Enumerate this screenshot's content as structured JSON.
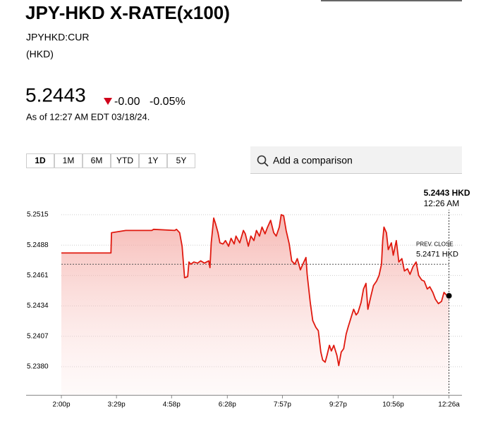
{
  "header": {
    "title": "JPY-HKD X-RATE(x100)",
    "ticker": "JPYHKD:CUR",
    "currency": "(HKD)",
    "price": "5.2443",
    "change": "-0.00",
    "change_pct": "-0.05%",
    "as_of": "As of 12:27 AM EDT 03/18/24."
  },
  "controls": {
    "ranges": [
      "1D",
      "1M",
      "6M",
      "YTD",
      "1Y",
      "5Y"
    ],
    "search_placeholder": "Add a comparison"
  },
  "chart_data": {
    "type": "line",
    "x": [
      0,
      80,
      81,
      104,
      146,
      149,
      183,
      186,
      191,
      195,
      199,
      204,
      206,
      209,
      214,
      220,
      225,
      231,
      238,
      240,
      242,
      246,
      249,
      253,
      256,
      261,
      265,
      270,
      274,
      279,
      282,
      288,
      294,
      297,
      302,
      306,
      311,
      315,
      320,
      324,
      329,
      333,
      338,
      343,
      347,
      352,
      355,
      359,
      363,
      368,
      372,
      377,
      381,
      386,
      390,
      395,
      397,
      402,
      406,
      411,
      415,
      419,
      422,
      426,
      429,
      433,
      436,
      440,
      445,
      448,
      452,
      456,
      460,
      463,
      468,
      472,
      476,
      479,
      484,
      488,
      492,
      495,
      500,
      504,
      509,
      513,
      517,
      519,
      521,
      525,
      528,
      533,
      536,
      541,
      545,
      550,
      554,
      559,
      563,
      568,
      573,
      577,
      582,
      586,
      591,
      595,
      600,
      604,
      609,
      614,
      618,
      623,
      626
    ],
    "series": [
      {
        "name": "JPYHKD:CUR",
        "color": "#e0190f",
        "values": [
          5.2481,
          5.2481,
          5.2499,
          5.2501,
          5.2501,
          5.2502,
          5.2501,
          5.2502,
          5.2499,
          5.2487,
          5.2459,
          5.246,
          5.2473,
          5.2471,
          5.2473,
          5.2472,
          5.2474,
          5.2472,
          5.2474,
          5.2468,
          5.249,
          5.2512,
          5.2507,
          5.2499,
          5.249,
          5.2489,
          5.2492,
          5.2487,
          5.2494,
          5.2489,
          5.2496,
          5.249,
          5.2501,
          5.2498,
          5.2487,
          5.2496,
          5.2492,
          5.2501,
          5.2496,
          5.2504,
          5.2498,
          5.2504,
          5.251,
          5.2499,
          5.2496,
          5.2504,
          5.2515,
          5.2514,
          5.2501,
          5.2489,
          5.2474,
          5.2471,
          5.2476,
          5.2466,
          5.2471,
          5.2477,
          5.2462,
          5.2437,
          5.2421,
          5.2415,
          5.2412,
          5.2393,
          5.2386,
          5.2384,
          5.239,
          5.2399,
          5.2394,
          5.2399,
          5.239,
          5.2381,
          5.2393,
          5.2396,
          5.2409,
          5.2415,
          5.2424,
          5.2431,
          5.2426,
          5.2428,
          5.2437,
          5.2449,
          5.2454,
          5.2431,
          5.2443,
          5.2452,
          5.2456,
          5.2461,
          5.2471,
          5.2492,
          5.2504,
          5.2499,
          5.2484,
          5.249,
          5.2479,
          5.2492,
          5.2473,
          5.2476,
          5.2465,
          5.2467,
          5.2462,
          5.2469,
          5.2473,
          5.2461,
          5.2457,
          5.2456,
          5.2449,
          5.2451,
          5.2446,
          5.244,
          5.2436,
          5.2438,
          5.2446,
          5.2443,
          5.2443
        ]
      }
    ],
    "xlim": [
      -57,
      647
    ],
    "xticks": [
      {
        "value": 0,
        "label": "2:00p"
      },
      {
        "value": 89,
        "label": "3:29p"
      },
      {
        "value": 178,
        "label": "4:58p"
      },
      {
        "value": 268,
        "label": "6:28p"
      },
      {
        "value": 357,
        "label": "7:57p"
      },
      {
        "value": 447,
        "label": "9:27p"
      },
      {
        "value": 536,
        "label": "10:56p"
      },
      {
        "value": 626,
        "label": "12:26a"
      }
    ],
    "ylim": [
      5.2355,
      5.2535
    ],
    "yticks": [
      {
        "value": 5.238,
        "label": "5.2380"
      },
      5.2407,
      5.2434,
      5.2461,
      5.2488,
      5.2515
    ],
    "grid": true,
    "prev_close": {
      "title": "PREV. CLOSE",
      "value": 5.2471,
      "label": "5.2471 HKD"
    },
    "tooltip": {
      "value_label": "5.2443 HKD",
      "time": "12:26 AM"
    }
  }
}
